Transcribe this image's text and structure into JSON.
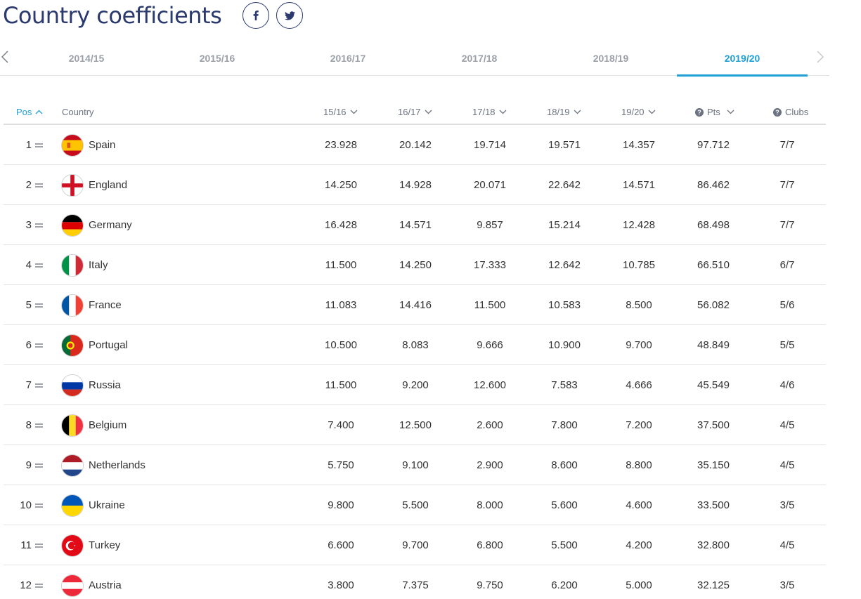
{
  "page": {
    "title": "Country coefficients"
  },
  "share": [
    {
      "icon": "facebook-icon"
    },
    {
      "icon": "twitter-icon"
    }
  ],
  "tabs": [
    {
      "label": "2014/15",
      "active": false
    },
    {
      "label": "2015/16",
      "active": false
    },
    {
      "label": "2016/17",
      "active": false
    },
    {
      "label": "2017/18",
      "active": false
    },
    {
      "label": "2018/19",
      "active": false
    },
    {
      "label": "2019/20",
      "active": true
    }
  ],
  "colors": {
    "title": "#2a3a6e",
    "accent": "#1e9fd7",
    "muted": "#9aa0a8"
  },
  "table": {
    "headers": {
      "pos": "Pos",
      "country": "Country",
      "s1": "15/16",
      "s2": "16/17",
      "s3": "17/18",
      "s4": "18/19",
      "s5": "19/20",
      "pts": "Pts",
      "clubs": "Clubs"
    },
    "rows": [
      {
        "rank": "1",
        "trend": "same",
        "flag": "spain-flag-icon",
        "country": "Spain",
        "s1": "23.928",
        "s2": "20.142",
        "s3": "19.714",
        "s4": "19.571",
        "s5": "14.357",
        "pts": "97.712",
        "clubs": "7/7"
      },
      {
        "rank": "2",
        "trend": "same",
        "flag": "england-flag-icon",
        "country": "England",
        "s1": "14.250",
        "s2": "14.928",
        "s3": "20.071",
        "s4": "22.642",
        "s5": "14.571",
        "pts": "86.462",
        "clubs": "7/7"
      },
      {
        "rank": "3",
        "trend": "same",
        "flag": "germany-flag-icon",
        "country": "Germany",
        "s1": "16.428",
        "s2": "14.571",
        "s3": "9.857",
        "s4": "15.214",
        "s5": "12.428",
        "pts": "68.498",
        "clubs": "7/7"
      },
      {
        "rank": "4",
        "trend": "same",
        "flag": "italy-flag-icon",
        "country": "Italy",
        "s1": "11.500",
        "s2": "14.250",
        "s3": "17.333",
        "s4": "12.642",
        "s5": "10.785",
        "pts": "66.510",
        "clubs": "6/7"
      },
      {
        "rank": "5",
        "trend": "same",
        "flag": "france-flag-icon",
        "country": "France",
        "s1": "11.083",
        "s2": "14.416",
        "s3": "11.500",
        "s4": "10.583",
        "s5": "8.500",
        "pts": "56.082",
        "clubs": "5/6"
      },
      {
        "rank": "6",
        "trend": "same",
        "flag": "portugal-flag-icon",
        "country": "Portugal",
        "s1": "10.500",
        "s2": "8.083",
        "s3": "9.666",
        "s4": "10.900",
        "s5": "9.700",
        "pts": "48.849",
        "clubs": "5/5"
      },
      {
        "rank": "7",
        "trend": "same",
        "flag": "russia-flag-icon",
        "country": "Russia",
        "s1": "11.500",
        "s2": "9.200",
        "s3": "12.600",
        "s4": "7.583",
        "s5": "4.666",
        "pts": "45.549",
        "clubs": "4/6"
      },
      {
        "rank": "8",
        "trend": "same",
        "flag": "belgium-flag-icon",
        "country": "Belgium",
        "s1": "7.400",
        "s2": "12.500",
        "s3": "2.600",
        "s4": "7.800",
        "s5": "7.200",
        "pts": "37.500",
        "clubs": "4/5"
      },
      {
        "rank": "9",
        "trend": "same",
        "flag": "netherlands-flag-icon",
        "country": "Netherlands",
        "s1": "5.750",
        "s2": "9.100",
        "s3": "2.900",
        "s4": "8.600",
        "s5": "8.800",
        "pts": "35.150",
        "clubs": "4/5"
      },
      {
        "rank": "10",
        "trend": "same",
        "flag": "ukraine-flag-icon",
        "country": "Ukraine",
        "s1": "9.800",
        "s2": "5.500",
        "s3": "8.000",
        "s4": "5.600",
        "s5": "4.600",
        "pts": "33.500",
        "clubs": "3/5"
      },
      {
        "rank": "11",
        "trend": "same",
        "flag": "turkey-flag-icon",
        "country": "Turkey",
        "s1": "6.600",
        "s2": "9.700",
        "s3": "6.800",
        "s4": "5.500",
        "s5": "4.200",
        "pts": "32.800",
        "clubs": "4/5"
      },
      {
        "rank": "12",
        "trend": "same",
        "flag": "austria-flag-icon",
        "country": "Austria",
        "s1": "3.800",
        "s2": "7.375",
        "s3": "9.750",
        "s4": "6.200",
        "s5": "5.000",
        "pts": "32.125",
        "clubs": "3/5"
      }
    ]
  }
}
